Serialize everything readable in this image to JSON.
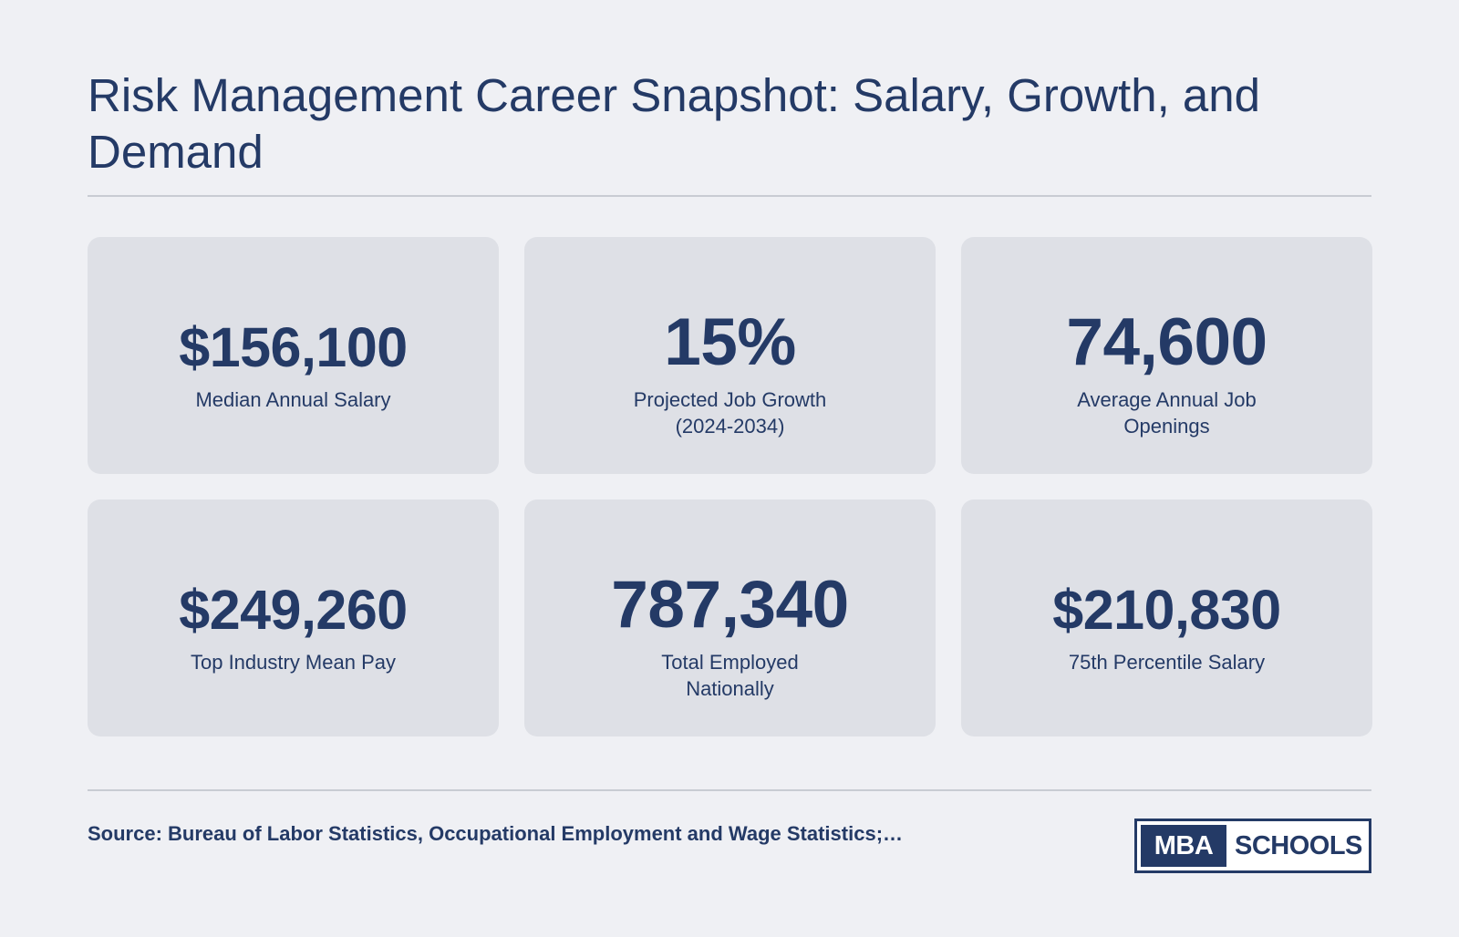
{
  "header": {
    "title": "Risk Management Career Snapshot: Salary, Growth, and Demand"
  },
  "stats": [
    {
      "value": "$156,100",
      "label": "Median Annual Salary"
    },
    {
      "value": "15%",
      "label": "Projected Job Growth (2024-2034)"
    },
    {
      "value": "74,600",
      "label": "Average Annual Job Openings"
    },
    {
      "value": "$249,260",
      "label": "Top Industry Mean Pay"
    },
    {
      "value": "787,340",
      "label": "Total Employed Nationally"
    },
    {
      "value": "$210,830",
      "label": "75th Percentile Salary"
    }
  ],
  "footer": {
    "source": "Source: Bureau of Labor Statistics, Occupational Employment and Wage Statistics;…",
    "logo": {
      "left_text": "MBA",
      "right_text": "SCHOOLS"
    }
  },
  "colors": {
    "background": "#eff0f4",
    "card": "#dee0e6",
    "brand_navy": "#243a66",
    "divider": "#c8ccd3"
  }
}
